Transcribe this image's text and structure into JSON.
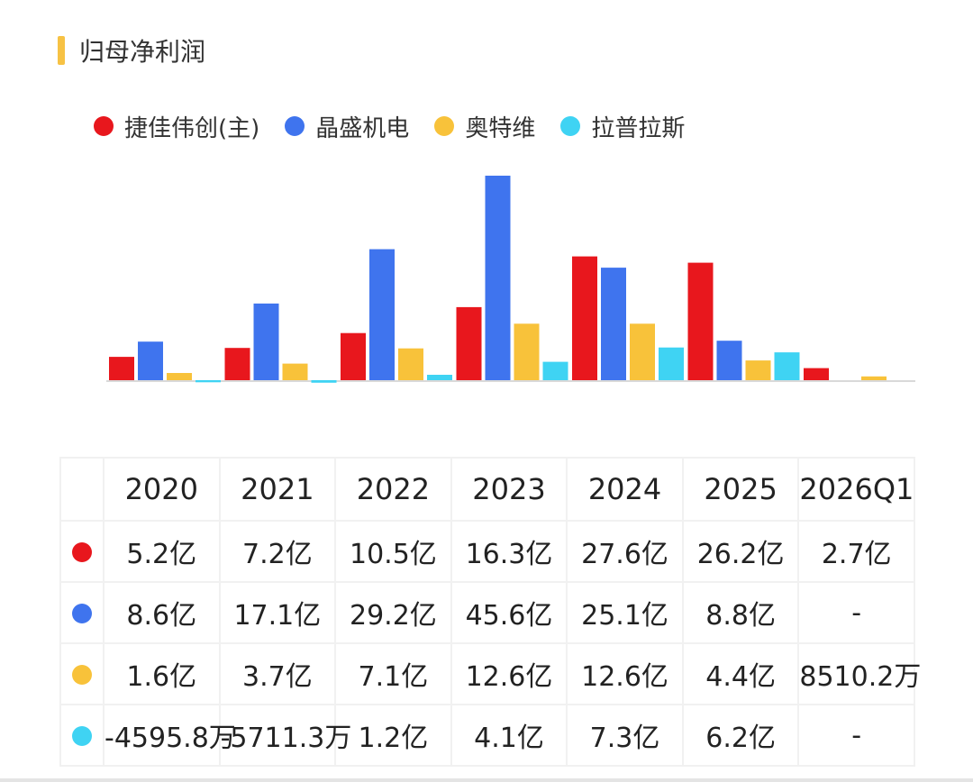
{
  "title": "归母净利润",
  "colors": {
    "accent": "#f7c244",
    "series": [
      "#e8171d",
      "#3f74ee",
      "#f8c23a",
      "#3fd3f3"
    ],
    "baseline": "#d9d9d9",
    "grid": "#f1f1f1"
  },
  "legend": [
    "捷佳伟创(主)",
    "晶盛机电",
    "奥特维",
    "拉普拉斯"
  ],
  "table": {
    "headers": [
      "2020",
      "2021",
      "2022",
      "2023",
      "2024",
      "2025",
      "2026Q1"
    ],
    "rows": [
      [
        "5.2亿",
        "7.2亿",
        "10.5亿",
        "16.3亿",
        "27.6亿",
        "26.2亿",
        "2.7亿"
      ],
      [
        "8.6亿",
        "17.1亿",
        "29.2亿",
        "45.6亿",
        "25.1亿",
        "8.8亿",
        "-"
      ],
      [
        "1.6亿",
        "3.7亿",
        "7.1亿",
        "12.6亿",
        "12.6亿",
        "4.4亿",
        "8510.2万"
      ],
      [
        "-4595.8万",
        "-5711.3万",
        "1.2亿",
        "4.1亿",
        "7.3亿",
        "6.2亿",
        "-"
      ]
    ]
  },
  "chart_data": {
    "type": "bar",
    "title": "归母净利润",
    "unit": "亿",
    "categories": [
      "2020",
      "2021",
      "2022",
      "2023",
      "2024",
      "2025",
      "2026Q1"
    ],
    "series": [
      {
        "name": "捷佳伟创(主)",
        "values": [
          5.2,
          7.2,
          10.5,
          16.3,
          27.6,
          26.2,
          2.7
        ]
      },
      {
        "name": "晶盛机电",
        "values": [
          8.6,
          17.1,
          29.2,
          45.6,
          25.1,
          8.8,
          null
        ]
      },
      {
        "name": "奥特维",
        "values": [
          1.6,
          3.7,
          7.1,
          12.6,
          12.6,
          4.4,
          0.85102
        ]
      },
      {
        "name": "拉普拉斯",
        "values": [
          -0.45958,
          -0.57113,
          1.2,
          4.1,
          7.3,
          6.2,
          null
        ]
      }
    ],
    "legend_position": "top-left",
    "grid": false
  }
}
